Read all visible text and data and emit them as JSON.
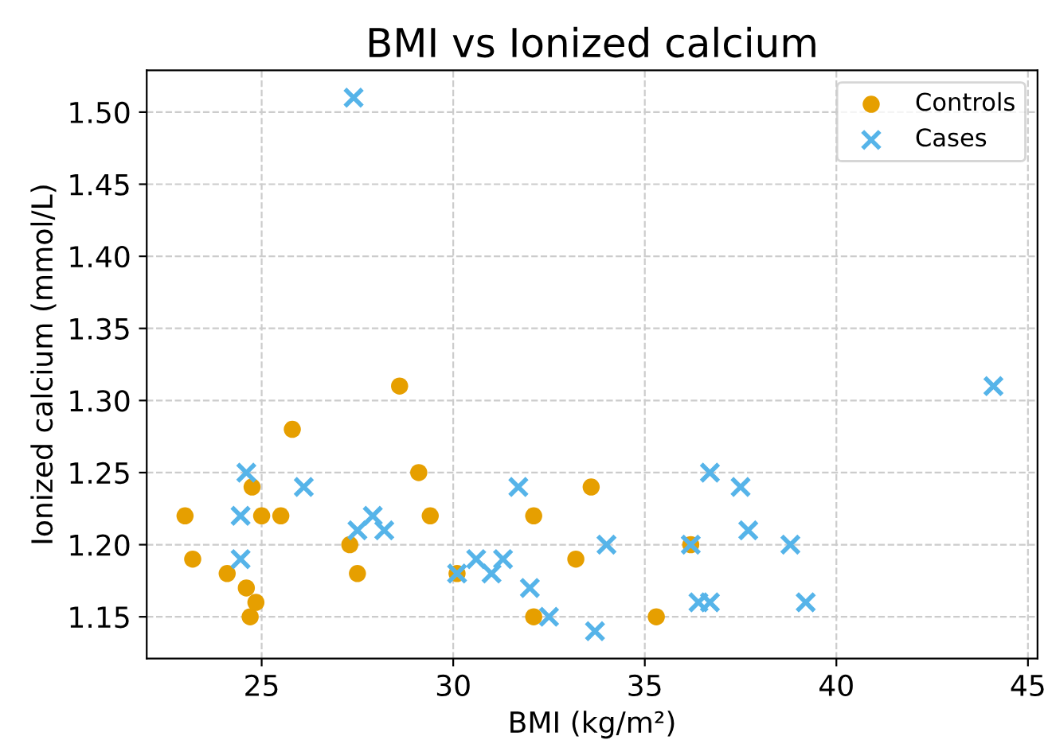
{
  "chart_data": {
    "type": "scatter",
    "title": "BMI vs Ionized calcium",
    "xlabel": "BMI (kg/m²)",
    "ylabel": "Ionized calcium (mmol/L)",
    "xlim": [
      22.0,
      45.25
    ],
    "xticks": [
      25,
      30,
      35,
      40,
      45
    ],
    "ylim": [
      1.121,
      1.529
    ],
    "yticks": [
      1.15,
      {
        "value": 1.2,
        "label": "1.20"
      },
      1.25,
      {
        "value": 1.3,
        "label": "1.30"
      },
      1.35,
      {
        "value": 1.4,
        "label": "1.40"
      },
      1.45,
      {
        "value": 1.5,
        "label": "1.50"
      }
    ],
    "grid": true,
    "legend": "top right",
    "series": [
      {
        "name": "Controls",
        "color": "#e69f00",
        "marker": "circle",
        "x": [
          23.0,
          23.2,
          24.1,
          24.6,
          24.85,
          24.7,
          24.75,
          25.0,
          25.5,
          25.8,
          27.3,
          27.5,
          28.6,
          29.1,
          29.4,
          30.1,
          32.1,
          32.1,
          33.2,
          33.6,
          35.3,
          36.2
        ],
        "values": [
          1.22,
          1.19,
          1.18,
          1.17,
          1.16,
          1.15,
          1.24,
          1.22,
          1.22,
          1.28,
          1.2,
          1.18,
          1.31,
          1.25,
          1.22,
          1.18,
          1.22,
          1.15,
          1.19,
          1.24,
          1.15,
          1.2
        ]
      },
      {
        "name": "Cases",
        "color": "#56b4e9",
        "marker": "cross",
        "x": [
          27.4,
          24.6,
          24.45,
          24.45,
          26.1,
          27.5,
          27.9,
          28.2,
          30.1,
          30.6,
          31.0,
          31.3,
          31.7,
          32.0,
          32.5,
          33.7,
          34.0,
          36.2,
          36.4,
          36.7,
          36.7,
          37.5,
          37.7,
          38.8,
          39.2,
          44.1
        ],
        "values": [
          1.51,
          1.25,
          1.22,
          1.19,
          1.24,
          1.21,
          1.22,
          1.21,
          1.18,
          1.19,
          1.18,
          1.19,
          1.24,
          1.17,
          1.15,
          1.14,
          1.2,
          1.2,
          1.16,
          1.16,
          1.25,
          1.24,
          1.21,
          1.2,
          1.16,
          1.31
        ]
      }
    ]
  }
}
